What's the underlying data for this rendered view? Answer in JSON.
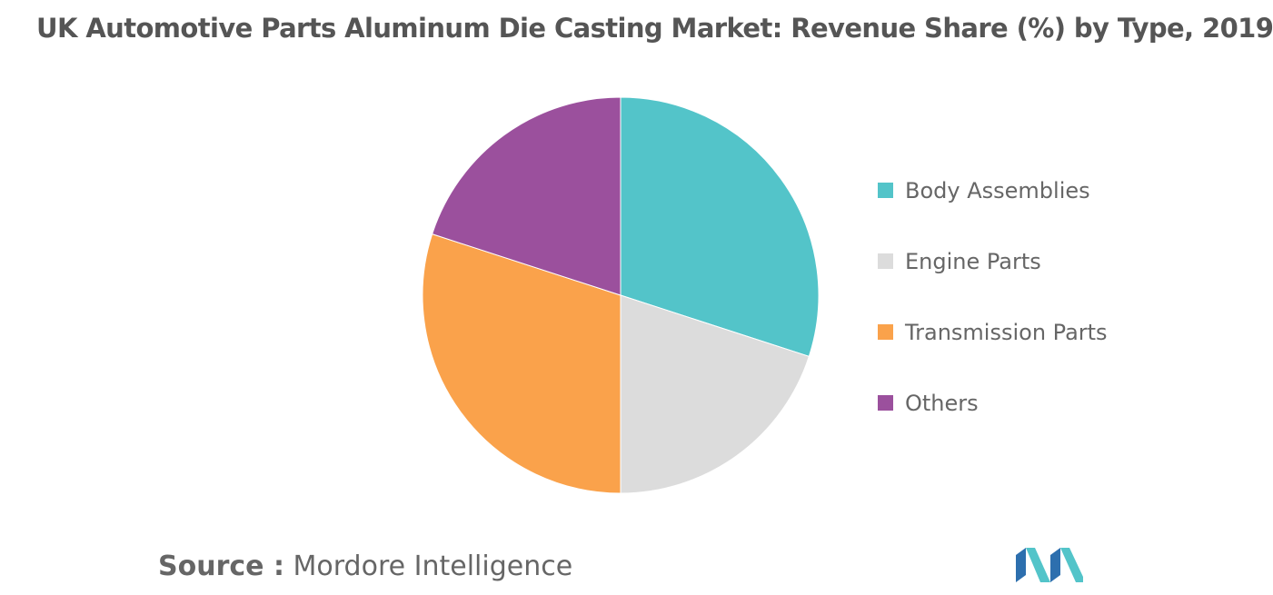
{
  "chart_data": {
    "type": "pie",
    "title": "UK Automotive Parts Aluminum Die Casting Market: Revenue Share (%) by Type, 2019",
    "categories": [
      "Body Assemblies",
      "Engine Parts",
      "Transmission Parts",
      "Others"
    ],
    "values": [
      30,
      20,
      30,
      20
    ],
    "colors": [
      "#53C4C9",
      "#DCDCDC",
      "#FAA24B",
      "#9B509D"
    ],
    "legend": "right",
    "start_angle": "12 o'clock",
    "direction": "clockwise"
  },
  "source": {
    "prefix": "Source :",
    "text": "Mordore Intelligence"
  },
  "logo": {
    "name": "mordor-intelligence-logo",
    "colors": [
      "#2D6FAE",
      "#53C4C9"
    ]
  }
}
